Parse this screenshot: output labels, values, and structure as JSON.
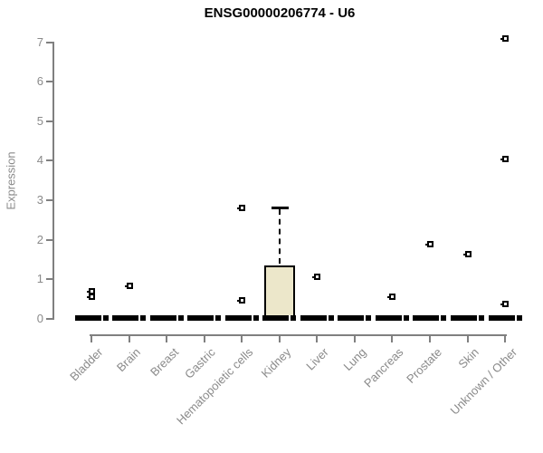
{
  "chart_data": {
    "type": "boxplot",
    "title": "ENSG00000206774 - U6",
    "ylabel": "Expression",
    "xlabel": "",
    "ylim": [
      0,
      7
    ],
    "yticks": [
      0,
      1,
      2,
      3,
      4,
      5,
      6,
      7
    ],
    "grid": false,
    "legend": "none",
    "categories": [
      "Bladder",
      "Brain",
      "Breast",
      "Gastric",
      "Hematopoietic cells",
      "Kidney",
      "Liver",
      "Lung",
      "Pancreas",
      "Prostate",
      "Skin",
      "Unknown / Other"
    ],
    "series": [
      {
        "name": "Bladder",
        "median": 0.02,
        "q1": 0,
        "q3": 0,
        "whisker_low": 0,
        "whisker_high": 0,
        "outliers": [
          0.7,
          0.56
        ]
      },
      {
        "name": "Brain",
        "median": 0.02,
        "q1": 0,
        "q3": 0,
        "whisker_low": 0,
        "whisker_high": 0,
        "outliers": [
          0.84
        ]
      },
      {
        "name": "Breast",
        "median": 0.02,
        "q1": 0,
        "q3": 0,
        "whisker_low": 0,
        "whisker_high": 0,
        "outliers": []
      },
      {
        "name": "Gastric",
        "median": 0.02,
        "q1": 0,
        "q3": 0,
        "whisker_low": 0,
        "whisker_high": 0,
        "outliers": []
      },
      {
        "name": "Hematopoietic cells",
        "median": 0.02,
        "q1": 0,
        "q3": 0,
        "whisker_low": 0,
        "whisker_high": 0,
        "outliers": [
          2.81,
          0.48
        ]
      },
      {
        "name": "Kidney",
        "median": 0.02,
        "q1": 0,
        "q3": 1.34,
        "whisker_low": 0,
        "whisker_high": 2.81,
        "outliers": []
      },
      {
        "name": "Liver",
        "median": 0.02,
        "q1": 0,
        "q3": 0,
        "whisker_low": 0,
        "whisker_high": 0,
        "outliers": [
          1.08
        ]
      },
      {
        "name": "Lung",
        "median": 0.02,
        "q1": 0,
        "q3": 0,
        "whisker_low": 0,
        "whisker_high": 0,
        "outliers": []
      },
      {
        "name": "Pancreas",
        "median": 0.02,
        "q1": 0,
        "q3": 0,
        "whisker_low": 0,
        "whisker_high": 0,
        "outliers": [
          0.57
        ]
      },
      {
        "name": "Prostate",
        "median": 0.02,
        "q1": 0,
        "q3": 0,
        "whisker_low": 0,
        "whisker_high": 0,
        "outliers": [
          1.9
        ]
      },
      {
        "name": "Skin",
        "median": 0.02,
        "q1": 0,
        "q3": 0,
        "whisker_low": 0,
        "whisker_high": 0,
        "outliers": [
          1.65
        ]
      },
      {
        "name": "Unknown / Other",
        "median": 0.02,
        "q1": 0,
        "q3": 0,
        "whisker_low": 0,
        "whisker_high": 0,
        "outliers": [
          7.1,
          4.05,
          0.38
        ]
      }
    ],
    "colors": {
      "box_fill": "#ece7ca",
      "box_border": "#000000",
      "median": "#000000",
      "whisker": "#000000",
      "outlier_border": "#000000",
      "outlier_fill": "#ffffff",
      "axis_line": "#808080",
      "axis_text": "#8a8a8a",
      "title_text": "#000000",
      "background": "#ffffff"
    }
  }
}
